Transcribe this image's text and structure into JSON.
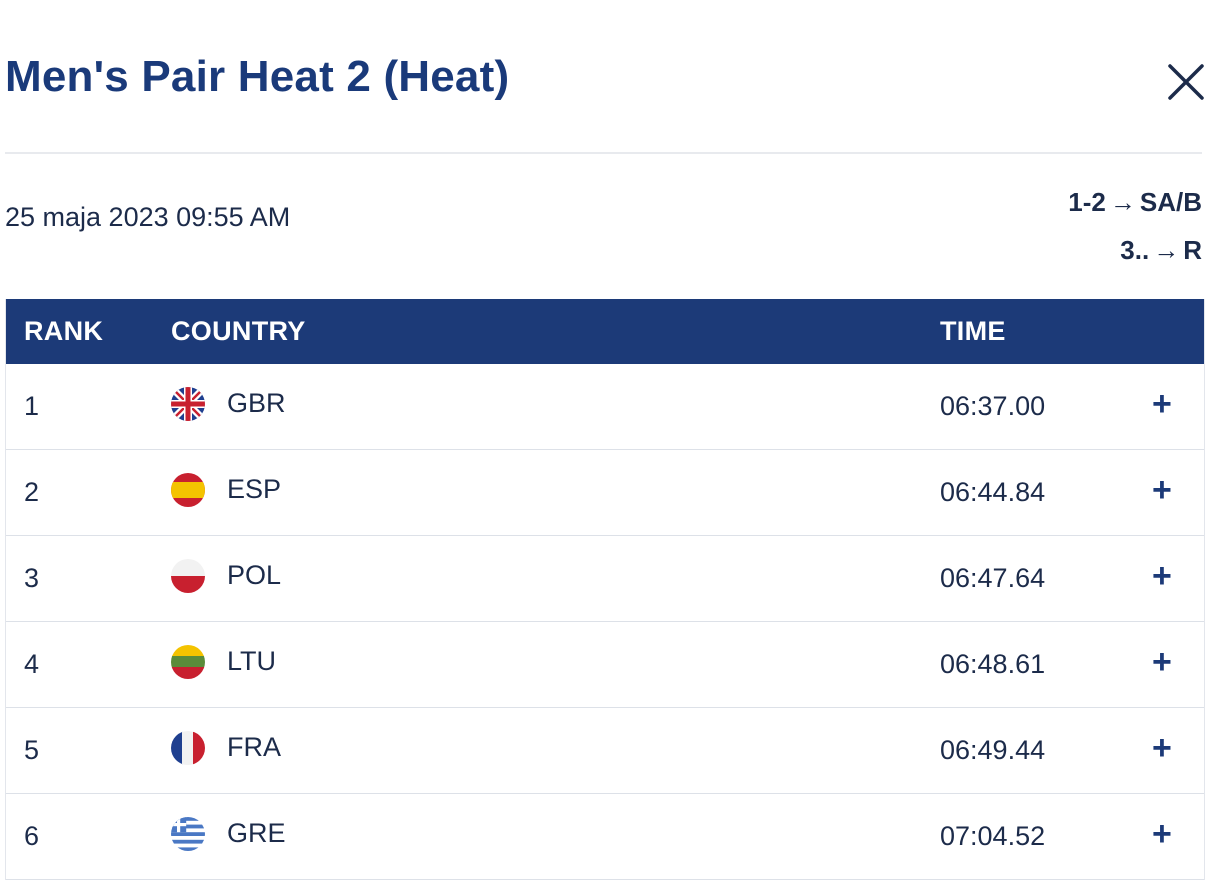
{
  "header": {
    "title": "Men's Pair Heat 2 (Heat)"
  },
  "meta": {
    "date": "25 maja 2023 09:55 AM",
    "progression": [
      {
        "from": "1-2",
        "to": "SA/B"
      },
      {
        "from": "3..",
        "to": "R"
      }
    ],
    "arrow": "→"
  },
  "table": {
    "columns": {
      "rank": "RANK",
      "country": "COUNTRY",
      "time": "TIME"
    },
    "rows": [
      {
        "rank": "1",
        "country": "GBR",
        "time": "06:37.00",
        "flag_icon": "flag-gbr-icon"
      },
      {
        "rank": "2",
        "country": "ESP",
        "time": "06:44.84",
        "flag_icon": "flag-esp-icon"
      },
      {
        "rank": "3",
        "country": "POL",
        "time": "06:47.64",
        "flag_icon": "flag-pol-icon"
      },
      {
        "rank": "4",
        "country": "LTU",
        "time": "06:48.61",
        "flag_icon": "flag-ltu-icon"
      },
      {
        "rank": "5",
        "country": "FRA",
        "time": "06:49.44",
        "flag_icon": "flag-fra-icon"
      },
      {
        "rank": "6",
        "country": "GRE",
        "time": "07:04.52",
        "flag_icon": "flag-gre-icon"
      }
    ],
    "expand_glyph": "+"
  },
  "colors": {
    "title": "#1a3a7a",
    "header_bg": "#1c3a78",
    "text": "#1c2b4a"
  }
}
